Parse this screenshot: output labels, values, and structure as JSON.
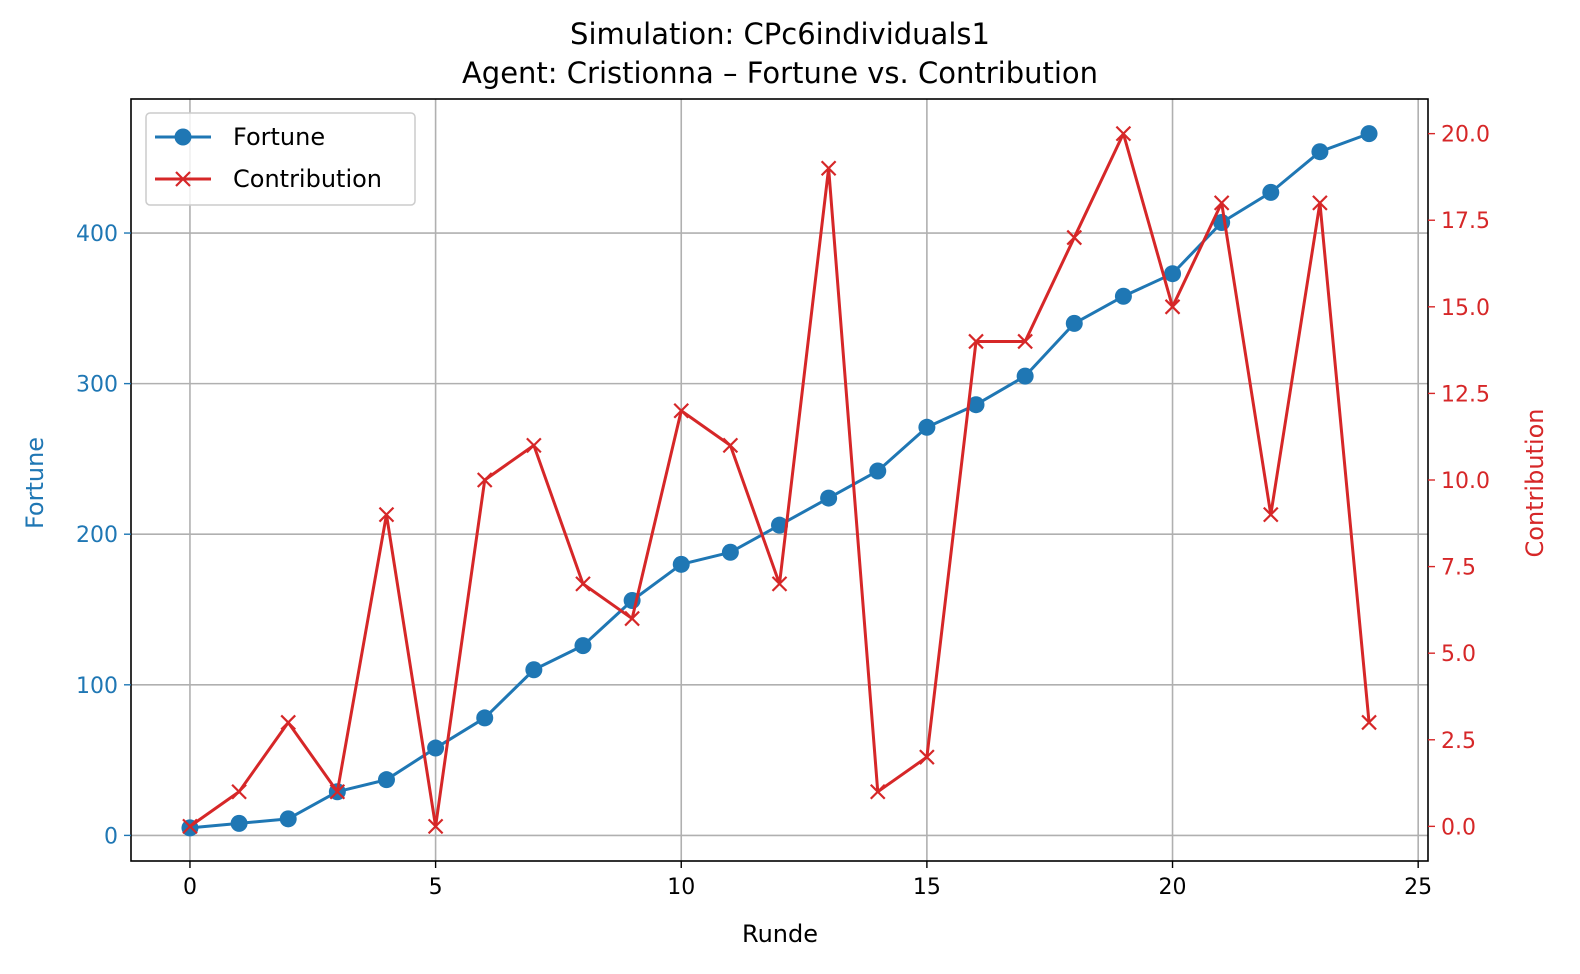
{
  "chart_data": {
    "type": "line",
    "title": "Simulation: CPc6individuals1",
    "subtitle": "Agent: Cristionna – Fortune vs. Contribution",
    "xlabel": "Runde",
    "ylabel_left": "Fortune",
    "ylabel_right": "Contribution",
    "xlim": [
      -1.2,
      25.2
    ],
    "ylim_left": [
      -17,
      489
    ],
    "ylim_right": [
      -1,
      21
    ],
    "x_ticks": [
      0,
      5,
      10,
      15,
      20,
      25
    ],
    "x_tick_labels": [
      "0",
      "5",
      "10",
      "15",
      "20",
      "25"
    ],
    "y_left_ticks": [
      0,
      100,
      200,
      300,
      400
    ],
    "y_left_tick_labels": [
      "0",
      "100",
      "200",
      "300",
      "400"
    ],
    "y_right_ticks": [
      0,
      2.5,
      5,
      7.5,
      10,
      12.5,
      15,
      17.5,
      20
    ],
    "y_right_tick_labels": [
      "0.0",
      "2.5",
      "5.0",
      "7.5",
      "10.0",
      "12.5",
      "15.0",
      "17.5",
      "20.0"
    ],
    "grid": true,
    "legend_position": "top-left",
    "x": [
      0,
      1,
      2,
      3,
      4,
      5,
      6,
      7,
      8,
      9,
      10,
      11,
      12,
      13,
      14,
      15,
      16,
      17,
      18,
      19,
      20,
      21,
      22,
      23,
      24
    ],
    "series": [
      {
        "name": "Fortune",
        "axis": "left",
        "marker": "circle",
        "color": "#1f77b4",
        "values": [
          5,
          8,
          11,
          29,
          37,
          58,
          78,
          110,
          126,
          156,
          180,
          188,
          206,
          224,
          242,
          271,
          286,
          305,
          340,
          358,
          373,
          407,
          427,
          454,
          466
        ]
      },
      {
        "name": "Contribution",
        "axis": "right",
        "marker": "x",
        "color": "#d62728",
        "values": [
          0,
          1,
          3,
          1,
          9,
          0,
          10,
          11,
          7,
          6,
          12,
          11,
          7,
          19,
          1,
          2,
          14,
          14,
          17,
          20,
          15,
          18,
          9,
          18,
          3
        ]
      }
    ]
  }
}
